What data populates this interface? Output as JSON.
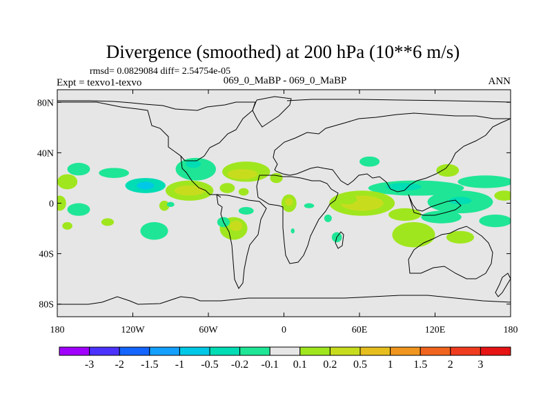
{
  "chart_data": {
    "type": "heatmap",
    "subtype": "filled-contour-map",
    "title": "Divergence (smoothed) at 200 hPa (10**6 m/s)",
    "stats": "rmsd= 0.0829084 diff= 2.54754e-05",
    "experiment": "Expt = texvo1-texvo",
    "comparison": "069_0_MaBP - 069_0_MaBP",
    "season": "ANN",
    "xlabel": "",
    "ylabel": "",
    "xlim": [
      -180,
      180
    ],
    "ylim": [
      -90,
      90
    ],
    "x_ticks": [
      {
        "value": -180,
        "label": "180"
      },
      {
        "value": -120,
        "label": "120W"
      },
      {
        "value": -60,
        "label": "60W"
      },
      {
        "value": 0,
        "label": "0"
      },
      {
        "value": 60,
        "label": "60E"
      },
      {
        "value": 120,
        "label": "120E"
      },
      {
        "value": 180,
        "label": "180"
      }
    ],
    "y_ticks": [
      {
        "value": 80,
        "label": "80N"
      },
      {
        "value": 40,
        "label": "40N"
      },
      {
        "value": 0,
        "label": "0"
      },
      {
        "value": -40,
        "label": "40S"
      },
      {
        "value": -80,
        "label": "80S"
      }
    ],
    "colorbar": {
      "labels": [
        "-3",
        "-2",
        "-1.5",
        "-1",
        "-0.5",
        "-0.2",
        "-0.1",
        "0.1",
        "0.2",
        "0.5",
        "1",
        "1.5",
        "2",
        "3"
      ],
      "colors": [
        "#a000ff",
        "#4b32ff",
        "#1464ff",
        "#14a0ff",
        "#00c8e6",
        "#00dcb4",
        "#1ee696",
        "#e6e6e6",
        "#a0e61e",
        "#c8dc1e",
        "#e6be1e",
        "#f0961e",
        "#f0641e",
        "#f03c1e",
        "#e61414"
      ]
    },
    "background_color": "#e6e6e6",
    "blobs": [
      {
        "lon": -163,
        "lat": 27,
        "rlon": 9,
        "rlat": 5,
        "value": -0.15
      },
      {
        "lon": -135,
        "lat": 24,
        "rlon": 12,
        "rlat": 4,
        "value": -0.15
      },
      {
        "lon": -172,
        "lat": 17,
        "rlon": 8,
        "rlat": 6,
        "value": 0.15
      },
      {
        "lon": -110,
        "lat": 14,
        "rlon": 16,
        "rlat": 6,
        "value": -0.3
      },
      {
        "lon": -110,
        "lat": 14,
        "rlon": 7,
        "rlat": 3,
        "value": -0.7
      },
      {
        "lon": -70,
        "lat": 27,
        "rlon": 16,
        "rlat": 9,
        "value": -0.15
      },
      {
        "lon": -72,
        "lat": 31,
        "rlon": 6,
        "rlat": 3,
        "value": -0.3
      },
      {
        "lon": -30,
        "lat": 25,
        "rlon": 19,
        "rlat": 8,
        "value": 0.15
      },
      {
        "lon": -33,
        "lat": 23,
        "rlon": 12,
        "rlat": 4,
        "value": 0.3
      },
      {
        "lon": -6,
        "lat": 20,
        "rlon": 5,
        "rlat": 4,
        "value": 0.15
      },
      {
        "lon": -75,
        "lat": 10,
        "rlon": 19,
        "rlat": 8,
        "value": 0.15
      },
      {
        "lon": -75,
        "lat": 10,
        "rlon": 12,
        "rlat": 4,
        "value": 0.3
      },
      {
        "lon": -45,
        "lat": 12,
        "rlon": 6,
        "rlat": 4,
        "value": 0.15
      },
      {
        "lon": -32,
        "lat": 9,
        "rlon": 4,
        "rlat": 3,
        "value": 0.15
      },
      {
        "lon": -178,
        "lat": 0,
        "rlon": 5,
        "rlat": 6,
        "value": 0.15
      },
      {
        "lon": -163,
        "lat": -5,
        "rlon": 9,
        "rlat": 5,
        "value": -0.15
      },
      {
        "lon": -95,
        "lat": -2,
        "rlon": 4,
        "rlat": 4,
        "value": 0.15
      },
      {
        "lon": -90,
        "lat": -1,
        "rlon": 3,
        "rlat": 2,
        "value": -0.15
      },
      {
        "lon": -140,
        "lat": -15,
        "rlon": 5,
        "rlat": 3,
        "value": 0.15
      },
      {
        "lon": -172,
        "lat": -18,
        "rlon": 4,
        "rlat": 3,
        "value": 0.15
      },
      {
        "lon": -30,
        "lat": -6,
        "rlon": 6,
        "rlat": 3,
        "value": -0.15
      },
      {
        "lon": -103,
        "lat": -22,
        "rlon": 11,
        "rlat": 7,
        "value": -0.15
      },
      {
        "lon": -40,
        "lat": -20,
        "rlon": 11,
        "rlat": 9,
        "value": 0.15
      },
      {
        "lon": -38,
        "lat": -18,
        "rlon": 5,
        "rlat": 4,
        "value": 0.3
      },
      {
        "lon": -48,
        "lat": -15,
        "rlon": 5,
        "rlat": 4,
        "value": -0.15
      },
      {
        "lon": 4,
        "lat": 0,
        "rlon": 6,
        "rlat": 7,
        "value": 0.15
      },
      {
        "lon": 4,
        "lat": 1,
        "rlon": 3,
        "rlat": 3,
        "value": 0.3
      },
      {
        "lon": 20,
        "lat": -2,
        "rlon": 4,
        "rlat": 2,
        "value": -0.15
      },
      {
        "lon": 35,
        "lat": -12,
        "rlon": 3,
        "rlat": 3,
        "value": -0.15
      },
      {
        "lon": 42,
        "lat": -27,
        "rlon": 4,
        "rlat": 4,
        "value": -0.15
      },
      {
        "lon": 7,
        "lat": -22,
        "rlon": 1.5,
        "rlat": 2,
        "value": -0.15
      },
      {
        "lon": 68,
        "lat": 33,
        "rlon": 8,
        "rlat": 4,
        "value": -0.15
      },
      {
        "lon": 130,
        "lat": 26,
        "rlon": 9,
        "rlat": 5,
        "value": 0.15
      },
      {
        "lon": 105,
        "lat": 12,
        "rlon": 38,
        "rlat": 6,
        "value": -0.15
      },
      {
        "lon": 95,
        "lat": 13,
        "rlon": 14,
        "rlat": 3,
        "value": -0.3
      },
      {
        "lon": 160,
        "lat": 17,
        "rlon": 22,
        "rlat": 5,
        "value": -0.15
      },
      {
        "lon": 62,
        "lat": 0,
        "rlon": 26,
        "rlat": 10,
        "value": 0.15
      },
      {
        "lon": 62,
        "lat": 0,
        "rlon": 17,
        "rlat": 6,
        "value": 0.3
      },
      {
        "lon": 50,
        "lat": 3,
        "rlon": 8,
        "rlat": 4,
        "value": 0.15
      },
      {
        "lon": 140,
        "lat": 1,
        "rlon": 26,
        "rlat": 9,
        "value": -0.15
      },
      {
        "lon": 140,
        "lat": 2,
        "rlon": 9,
        "rlat": 3,
        "value": -0.3
      },
      {
        "lon": 175,
        "lat": 6,
        "rlon": 8,
        "rlat": 4,
        "value": 0.15
      },
      {
        "lon": 96,
        "lat": -9,
        "rlon": 13,
        "rlat": 5,
        "value": 0.15
      },
      {
        "lon": 125,
        "lat": -11,
        "rlon": 16,
        "rlat": 5,
        "value": -0.15
      },
      {
        "lon": 168,
        "lat": -14,
        "rlon": 13,
        "rlat": 5,
        "value": -0.15
      },
      {
        "lon": 103,
        "lat": -25,
        "rlon": 17,
        "rlat": 10,
        "value": 0.15
      },
      {
        "lon": 140,
        "lat": -27,
        "rlon": 11,
        "rlat": 5,
        "value": 0.15
      }
    ]
  },
  "map_outline_paths": [
    "M0,0",
    "M0,0"
  ]
}
